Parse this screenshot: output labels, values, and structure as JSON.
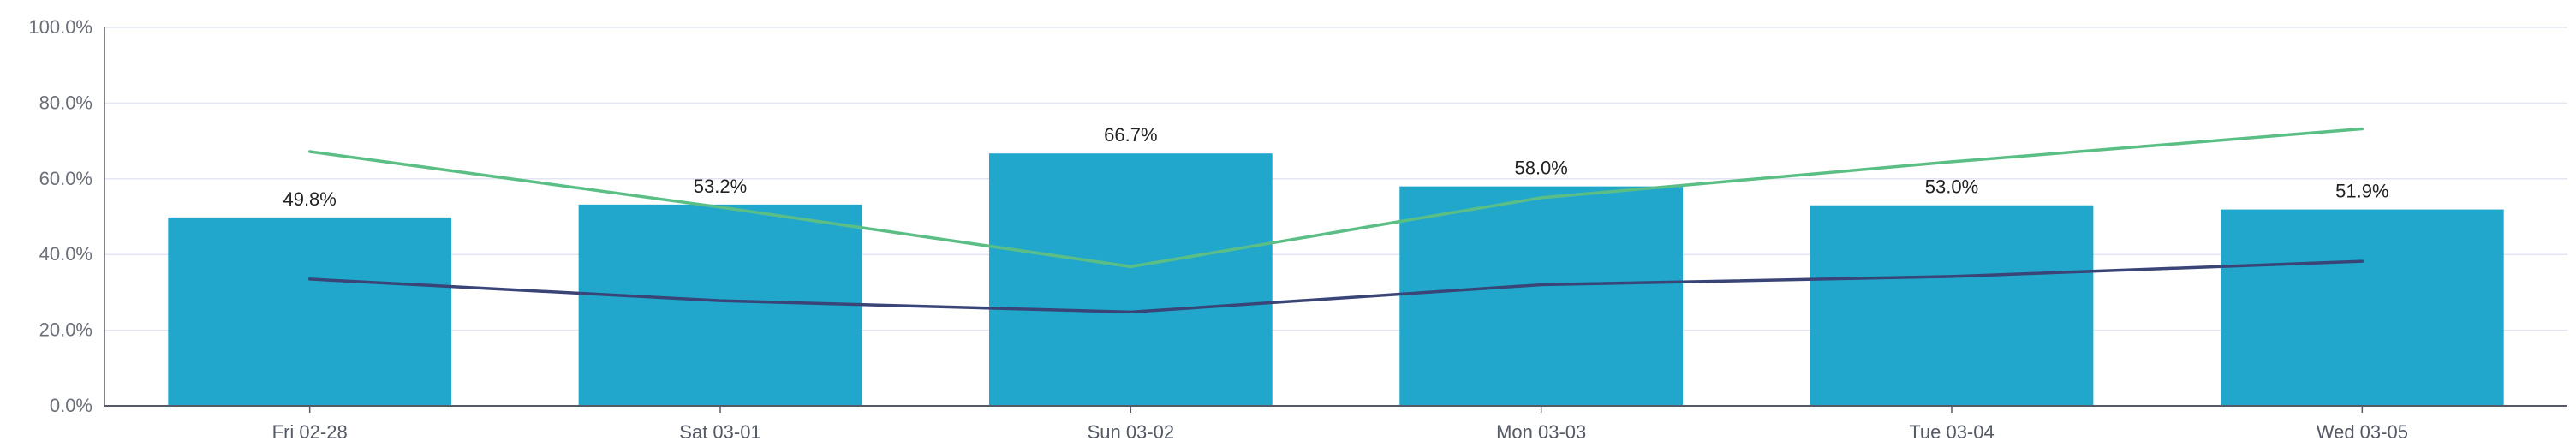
{
  "chart_data": {
    "type": "bar",
    "categories": [
      "Fri 02-28",
      "Sat 03-01",
      "Sun 03-02",
      "Mon 03-03",
      "Tue 03-04",
      "Wed 03-05"
    ],
    "ylim": [
      0,
      100
    ],
    "yticks": [
      "0.0%",
      "20.0%",
      "40.0%",
      "60.0%",
      "80.0%",
      "100.0%"
    ],
    "grid": true,
    "series": [
      {
        "kind": "bar",
        "values": [
          49.8,
          53.2,
          66.7,
          58.0,
          53.0,
          51.9
        ],
        "labels": [
          "49.8%",
          "53.2%",
          "66.7%",
          "58.0%",
          "53.0%",
          "51.9%"
        ],
        "color": "#22a7cc"
      },
      {
        "kind": "line",
        "values": [
          67.2,
          52.5,
          36.8,
          55.0,
          64.5,
          73.2
        ],
        "color": "#5bbf85"
      },
      {
        "kind": "line",
        "values": [
          33.5,
          27.8,
          24.8,
          32.0,
          34.2,
          38.2
        ],
        "color": "#3a4577"
      }
    ],
    "colors": {
      "grid": "#e3e6f2",
      "axis": "#555a66"
    }
  }
}
